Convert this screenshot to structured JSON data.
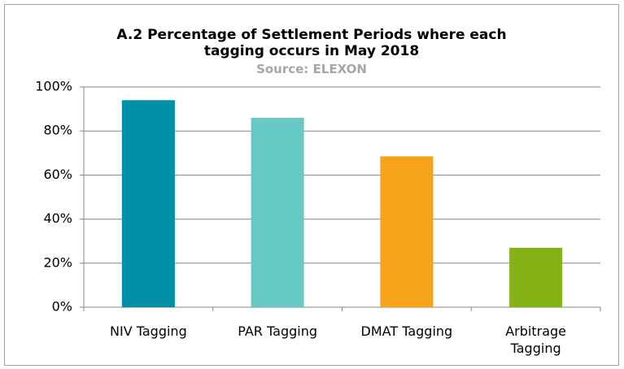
{
  "chart_data": {
    "type": "bar",
    "title": "A.2 Percentage of Settlement Periods where each tagging occurs in May 2018",
    "subtitle": "Source: ELEXON",
    "categories": [
      "NIV Tagging",
      "PAR Tagging",
      "DMAT Tagging",
      "Arbitrage Tagging"
    ],
    "values": [
      94,
      86,
      68.5,
      27
    ],
    "colors": [
      "#0090a8",
      "#66c9c4",
      "#f7a21b",
      "#84b217"
    ],
    "ylim": [
      0,
      100
    ],
    "yticks": [
      {
        "value": 0,
        "label": "0%"
      },
      {
        "value": 20,
        "label": "20%"
      },
      {
        "value": 40,
        "label": "40%"
      },
      {
        "value": 60,
        "label": "60%"
      },
      {
        "value": 80,
        "label": "80%"
      },
      {
        "value": 100,
        "label": "100%"
      }
    ],
    "grid": true
  }
}
